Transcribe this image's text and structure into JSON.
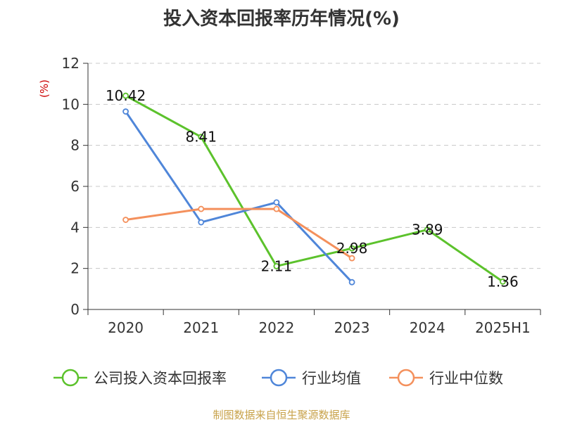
{
  "title": "投入资本回报率历年情况(%)",
  "source": "制图数据来自恒生聚源数据库",
  "chart_data": {
    "type": "line",
    "title": "投入资本回报率历年情况(%)",
    "ylabel": "(%)",
    "xlabel": "",
    "categories": [
      "2020",
      "2021",
      "2022",
      "2023",
      "2024",
      "2025H1"
    ],
    "ylim": [
      0,
      12
    ],
    "yticks": [
      0,
      2,
      4,
      6,
      8,
      10,
      12
    ],
    "grid": true,
    "legend": "bottom",
    "series": [
      {
        "name": "公司投入资本回报率",
        "color": "#5cc22c",
        "values": [
          10.42,
          8.41,
          2.11,
          2.98,
          3.89,
          1.36
        ],
        "labels": [
          "10.42",
          "8.41",
          "2.11",
          "2.98",
          "3.89",
          "1.36"
        ]
      },
      {
        "name": "行业均值",
        "color": "#4f86d9",
        "values": [
          9.65,
          4.25,
          5.22,
          1.33,
          null,
          null
        ]
      },
      {
        "name": "行业中位数",
        "color": "#f4905c",
        "values": [
          4.37,
          4.9,
          4.9,
          2.5,
          null,
          null
        ]
      }
    ]
  }
}
